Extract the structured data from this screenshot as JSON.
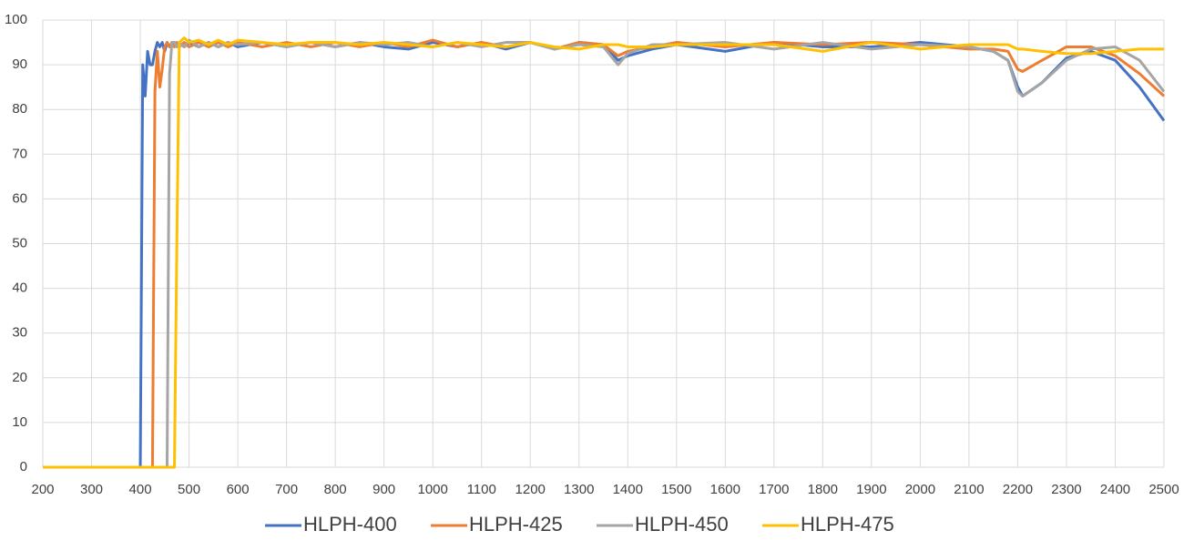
{
  "chart_data": {
    "type": "line",
    "x": [
      200,
      395,
      400,
      405,
      410,
      415,
      420,
      425,
      430,
      435,
      440,
      445,
      450,
      455,
      460,
      465,
      470,
      475,
      480,
      490,
      500,
      520,
      540,
      560,
      580,
      600,
      650,
      700,
      750,
      800,
      850,
      900,
      950,
      1000,
      1050,
      1100,
      1150,
      1200,
      1250,
      1300,
      1350,
      1380,
      1400,
      1450,
      1500,
      1600,
      1700,
      1800,
      1900,
      2000,
      2100,
      2150,
      2180,
      2200,
      2210,
      2250,
      2300,
      2350,
      2400,
      2450,
      2500
    ],
    "series": [
      {
        "name": "HLPH-400",
        "color": "#4472c4",
        "values": [
          0,
          0,
          0,
          90,
          83,
          93,
          90,
          90,
          93,
          95,
          94,
          95,
          93,
          95,
          94,
          95,
          95,
          94,
          95,
          94,
          95,
          94,
          95,
          94,
          95,
          94,
          95,
          94,
          95,
          94,
          95,
          94,
          93.5,
          95,
          94,
          95,
          93.5,
          95,
          93.5,
          95,
          94.5,
          91,
          92,
          93.5,
          94.5,
          93,
          95,
          94,
          94,
          95,
          94,
          93,
          91,
          85,
          83,
          86,
          91.5,
          93,
          91,
          85,
          77.5
        ]
      },
      {
        "name": "HLPH-425",
        "color": "#ed7d31",
        "values": [
          0,
          0,
          0,
          0,
          0,
          0,
          0,
          0,
          84,
          93,
          85,
          89,
          94,
          95,
          94,
          95,
          94,
          95,
          94,
          95,
          94,
          95,
          94,
          95,
          94,
          95,
          94,
          95,
          94,
          95,
          94,
          95,
          94,
          95.5,
          94,
          95,
          94,
          95,
          93.5,
          95,
          94.5,
          92,
          93,
          94,
          95,
          94,
          95,
          94.5,
          95,
          94.5,
          93.5,
          93.5,
          93,
          89,
          88.5,
          91,
          94,
          94,
          92,
          88,
          83
        ]
      },
      {
        "name": "HLPH-450",
        "color": "#a5a5a5",
        "values": [
          0,
          0,
          0,
          0,
          0,
          0,
          0,
          0,
          0,
          0,
          0,
          0,
          0,
          0,
          88,
          95,
          95,
          94,
          95,
          94,
          95.5,
          94,
          95,
          94,
          95,
          94.5,
          95,
          94,
          95,
          94,
          95,
          94.5,
          95,
          94,
          95,
          94,
          95,
          95,
          93.5,
          94.5,
          94,
          90,
          92.5,
          94.5,
          94.5,
          95,
          93.5,
          95,
          93.5,
          94.5,
          94,
          93,
          91,
          84,
          83,
          86,
          91,
          93.5,
          94,
          91,
          84
        ]
      },
      {
        "name": "HLPH-475",
        "color": "#ffc000",
        "values": [
          0,
          0,
          0,
          0,
          0,
          0,
          0,
          0,
          0,
          0,
          0,
          0,
          0,
          0,
          0,
          0,
          0,
          50,
          95,
          96,
          95,
          95.5,
          94.5,
          95.5,
          94.5,
          95.5,
          95,
          94.5,
          95,
          95,
          94.5,
          95,
          94.5,
          94,
          95,
          94.5,
          94,
          95,
          94,
          93.5,
          94.5,
          94.5,
          94,
          94,
          94.5,
          94.5,
          94.5,
          93,
          95,
          93.5,
          94.5,
          94.5,
          94.5,
          93.5,
          93.5,
          93,
          92.5,
          92.5,
          93,
          93.5,
          93.5
        ]
      }
    ],
    "xlim": [
      200,
      2500
    ],
    "xticks": [
      200,
      300,
      400,
      500,
      600,
      700,
      800,
      900,
      1000,
      1100,
      1200,
      1300,
      1400,
      1500,
      1600,
      1700,
      1800,
      1900,
      2000,
      2100,
      2200,
      2300,
      2400,
      2500
    ],
    "ylim": [
      0,
      100
    ],
    "yticks": [
      0,
      10,
      20,
      30,
      40,
      50,
      60,
      70,
      80,
      90,
      100
    ],
    "grid": true,
    "legend": "bottom"
  }
}
